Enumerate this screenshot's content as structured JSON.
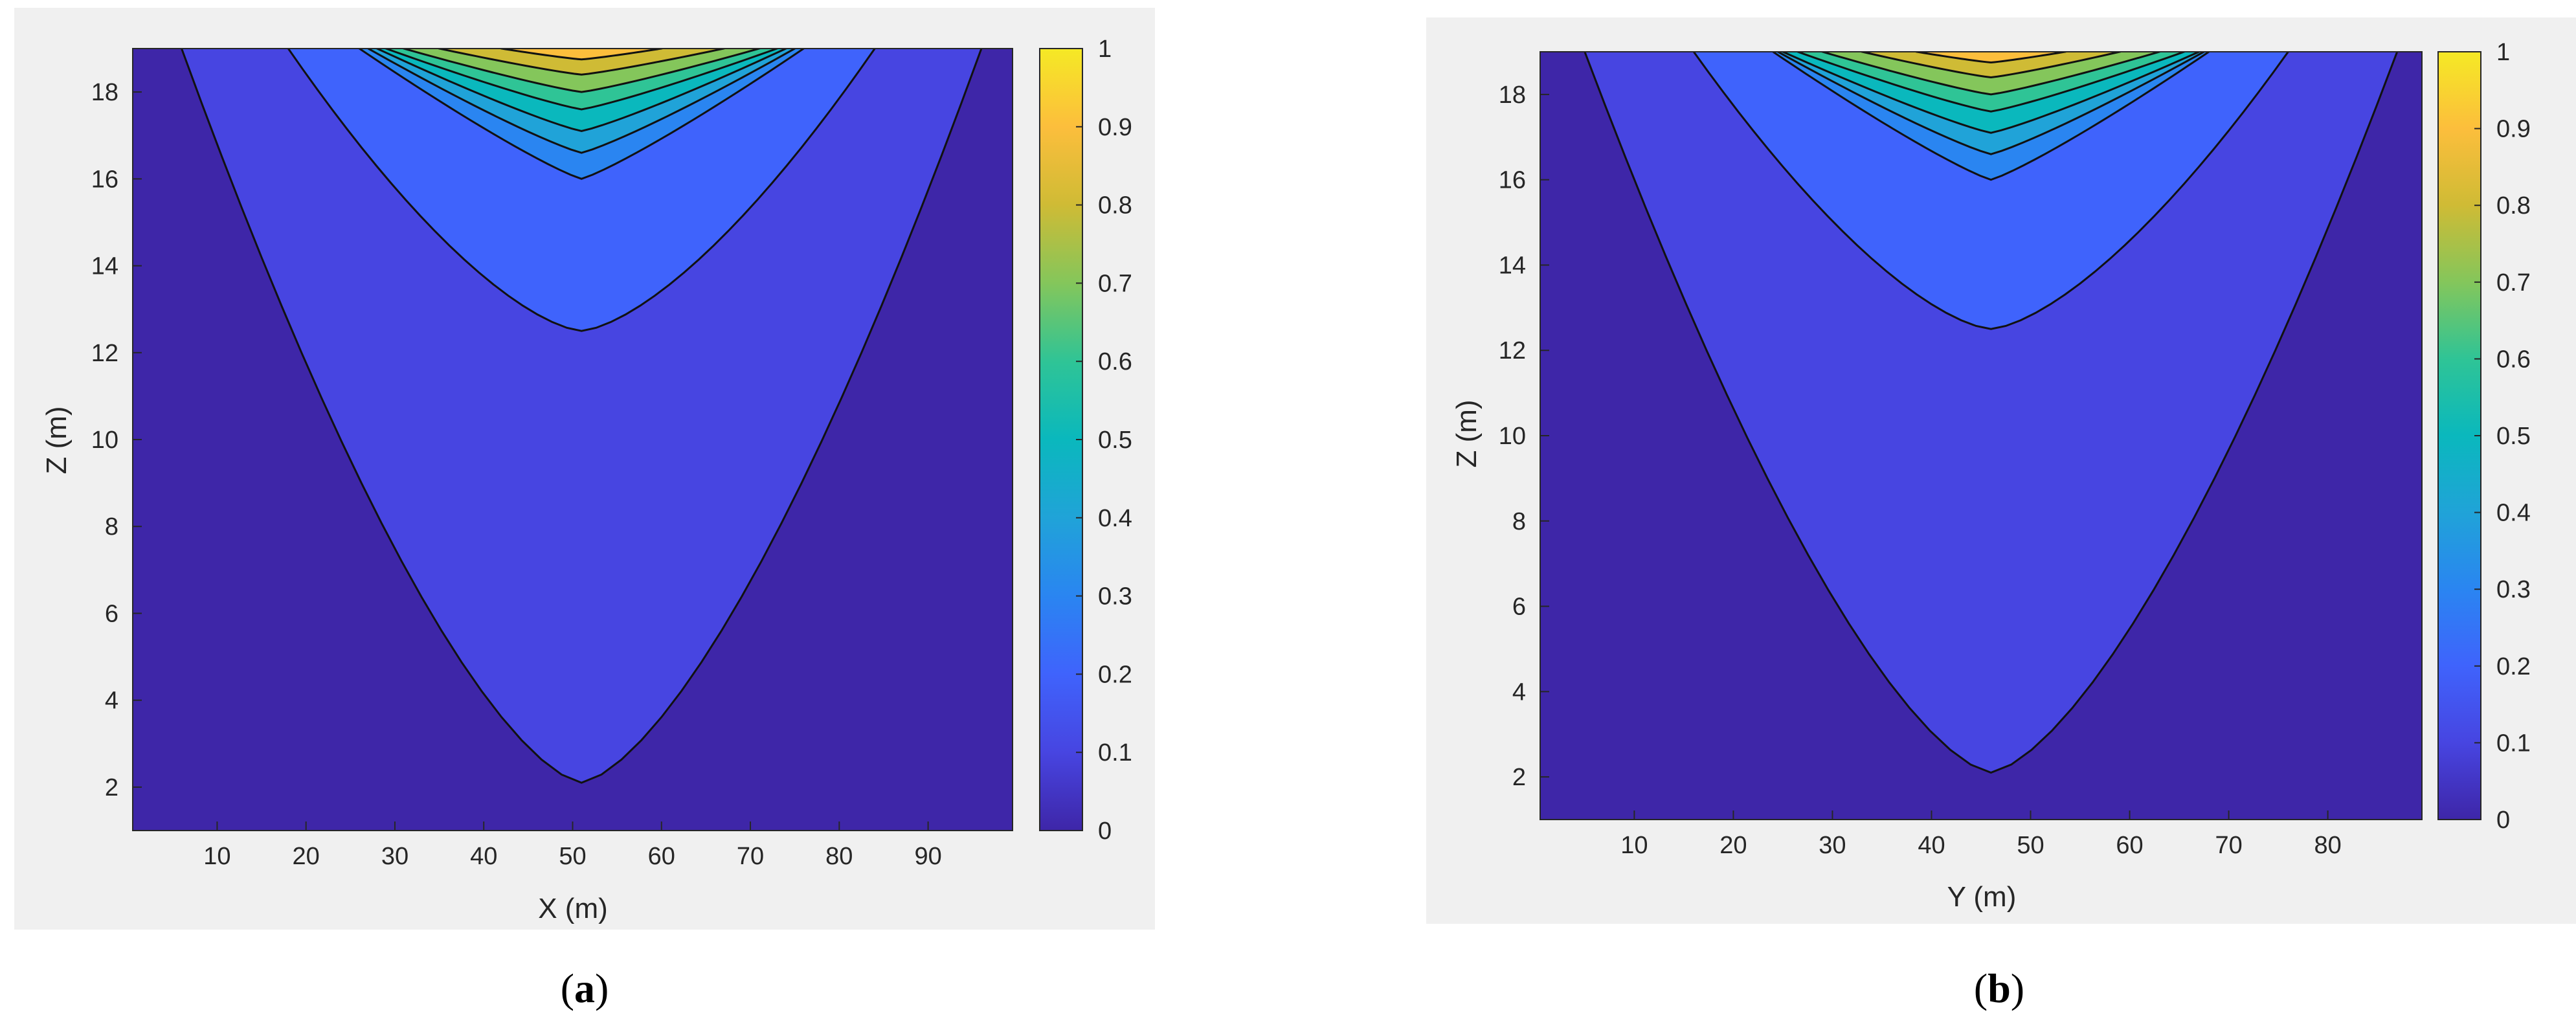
{
  "chart_data": [
    {
      "type": "contour",
      "panel": "a",
      "caption_letter": "a",
      "xlabel": "X (m)",
      "ylabel": "Z (m)",
      "xlim": [
        0.5,
        99.5
      ],
      "ylim": [
        1,
        19
      ],
      "xticks": [
        10,
        20,
        30,
        40,
        50,
        60,
        70,
        80,
        90
      ],
      "yticks": [
        2,
        4,
        6,
        8,
        10,
        12,
        14,
        16,
        18
      ],
      "center_x": 51,
      "contour_levels": [
        0,
        0.1,
        0.2,
        0.3,
        0.4,
        0.5,
        0.6,
        0.7,
        0.8,
        0.9,
        1
      ],
      "contours": [
        {
          "level": 0.1,
          "apex_z": 2.1,
          "top_half_width": 45
        },
        {
          "level": 0.2,
          "apex_z": 12.5,
          "top_half_width": 33
        },
        {
          "level": 0.3,
          "apex_z": 16.0,
          "top_half_width": 25
        },
        {
          "level": 0.4,
          "apex_z": 16.6,
          "top_half_width": 24
        },
        {
          "level": 0.5,
          "apex_z": 17.1,
          "top_half_width": 23
        },
        {
          "level": 0.6,
          "apex_z": 17.6,
          "top_half_width": 22
        },
        {
          "level": 0.7,
          "apex_z": 18.0,
          "top_half_width": 20
        },
        {
          "level": 0.8,
          "apex_z": 18.4,
          "top_half_width": 16
        },
        {
          "level": 0.9,
          "apex_z": 18.75,
          "top_half_width": 9
        }
      ],
      "colorbar": {
        "range": [
          0,
          1
        ],
        "ticks": [
          "0",
          "0.1",
          "0.2",
          "0.3",
          "0.4",
          "0.5",
          "0.6",
          "0.7",
          "0.8",
          "0.9",
          "1"
        ]
      },
      "colormap": [
        "#3e26a8",
        "#4745e1",
        "#3f63fc",
        "#2a85f1",
        "#20a3d8",
        "#0ab8bd",
        "#2fc496",
        "#84c65b",
        "#cfbb35",
        "#fcbe3c",
        "#f5e925"
      ]
    },
    {
      "type": "contour",
      "panel": "b",
      "caption_letter": "b",
      "xlabel": "Y (m)",
      "ylabel": "Z (m)",
      "xlim": [
        0.5,
        89.5
      ],
      "ylim": [
        1,
        19
      ],
      "xticks": [
        10,
        20,
        30,
        40,
        50,
        60,
        70,
        80
      ],
      "yticks": [
        2,
        4,
        6,
        8,
        10,
        12,
        14,
        16,
        18
      ],
      "center_x": 46,
      "contour_levels": [
        0,
        0.1,
        0.2,
        0.3,
        0.4,
        0.5,
        0.6,
        0.7,
        0.8,
        0.9,
        1
      ],
      "contours": [
        {
          "level": 0.1,
          "apex_z": 2.1,
          "top_half_width": 41
        },
        {
          "level": 0.2,
          "apex_z": 12.5,
          "top_half_width": 30
        },
        {
          "level": 0.3,
          "apex_z": 16.0,
          "top_half_width": 22
        },
        {
          "level": 0.4,
          "apex_z": 16.6,
          "top_half_width": 21.5
        },
        {
          "level": 0.5,
          "apex_z": 17.1,
          "top_half_width": 21
        },
        {
          "level": 0.6,
          "apex_z": 17.6,
          "top_half_width": 19.5
        },
        {
          "level": 0.7,
          "apex_z": 18.0,
          "top_half_width": 17
        },
        {
          "level": 0.8,
          "apex_z": 18.4,
          "top_half_width": 13
        },
        {
          "level": 0.9,
          "apex_z": 18.75,
          "top_half_width": 7.5
        }
      ],
      "colorbar": {
        "range": [
          0,
          1
        ],
        "ticks": [
          "0",
          "0.1",
          "0.2",
          "0.3",
          "0.4",
          "0.5",
          "0.6",
          "0.7",
          "0.8",
          "0.9",
          "1"
        ]
      },
      "colormap": [
        "#3e26a8",
        "#4745e1",
        "#3f63fc",
        "#2a85f1",
        "#20a3d8",
        "#0ab8bd",
        "#2fc496",
        "#84c65b",
        "#cfbb35",
        "#fcbe3c",
        "#f5e925"
      ]
    }
  ]
}
